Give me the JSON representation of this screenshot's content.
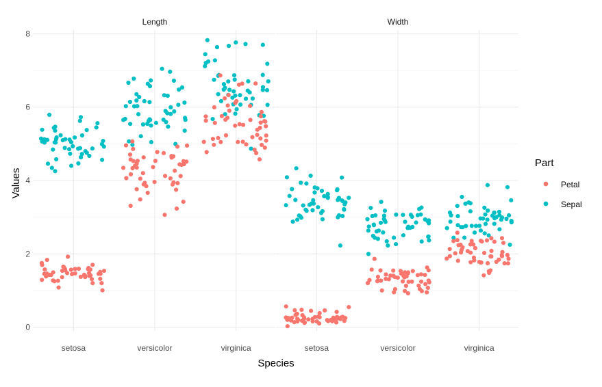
{
  "chart_data": {
    "type": "scatter",
    "jitter": true,
    "facets": [
      "Length",
      "Width"
    ],
    "categories": [
      "setosa",
      "versicolor",
      "virginica"
    ],
    "xlabel": "Species",
    "ylabel": "Values",
    "ylim": [
      -0.1,
      8.1
    ],
    "yticks": [
      0,
      2,
      4,
      6,
      8
    ],
    "yticks_labels": [
      "0",
      "2",
      "4",
      "6",
      "8"
    ],
    "grid": true,
    "legend": {
      "title": "Part",
      "position": "right",
      "entries": [
        {
          "name": "Petal",
          "color": "#F8766D"
        },
        {
          "name": "Sepal",
          "color": "#00BFC4"
        }
      ]
    },
    "series": [
      {
        "name": "Sepal",
        "facet": "Length",
        "color": "#00BFC4",
        "groups": {
          "setosa": [
            5.1,
            4.9,
            4.7,
            4.6,
            5.0,
            5.4,
            4.6,
            5.0,
            4.4,
            4.9,
            5.4,
            4.8,
            4.8,
            4.3,
            5.8,
            5.7,
            5.4,
            5.1,
            5.7,
            5.1,
            5.4,
            5.1,
            4.6,
            5.1,
            4.8,
            5.0,
            5.0,
            5.2,
            5.2,
            4.7,
            4.8,
            5.4,
            5.2,
            5.5,
            4.9,
            5.0,
            5.5,
            4.9,
            4.4,
            5.1,
            5.0,
            4.5,
            4.4,
            5.0,
            5.1,
            4.8,
            5.1,
            4.6,
            5.3,
            5.0
          ],
          "versicolor": [
            7.0,
            6.4,
            6.9,
            5.5,
            6.5,
            5.7,
            6.3,
            4.9,
            6.6,
            5.2,
            5.0,
            5.9,
            6.0,
            6.1,
            5.6,
            6.7,
            5.6,
            5.8,
            6.2,
            5.6,
            5.9,
            6.1,
            6.3,
            6.1,
            6.4,
            6.6,
            6.8,
            6.7,
            6.0,
            5.7,
            5.5,
            5.5,
            5.8,
            6.0,
            5.4,
            6.0,
            6.7,
            6.3,
            5.6,
            5.5,
            5.5,
            6.1,
            5.8,
            5.0,
            5.6,
            5.7,
            5.7,
            6.2,
            5.1,
            5.7
          ],
          "virginica": [
            6.3,
            5.8,
            7.1,
            6.3,
            6.5,
            7.6,
            4.9,
            7.3,
            6.7,
            7.2,
            6.5,
            6.4,
            6.8,
            5.7,
            5.8,
            6.4,
            6.5,
            7.7,
            7.7,
            6.0,
            6.9,
            5.6,
            7.7,
            6.3,
            6.7,
            7.2,
            6.2,
            6.1,
            6.4,
            7.2,
            7.4,
            7.9,
            6.4,
            6.3,
            6.1,
            7.7,
            6.3,
            6.4,
            6.0,
            6.9,
            6.7,
            6.9,
            5.8,
            6.8,
            6.7,
            6.7,
            6.3,
            6.5,
            6.2,
            5.9
          ]
        }
      },
      {
        "name": "Petal",
        "facet": "Length",
        "color": "#F8766D",
        "groups": {
          "setosa": [
            1.4,
            1.4,
            1.3,
            1.5,
            1.4,
            1.7,
            1.4,
            1.5,
            1.4,
            1.5,
            1.5,
            1.6,
            1.4,
            1.1,
            1.2,
            1.5,
            1.3,
            1.4,
            1.7,
            1.5,
            1.7,
            1.5,
            1.0,
            1.7,
            1.9,
            1.6,
            1.6,
            1.5,
            1.4,
            1.6,
            1.6,
            1.5,
            1.5,
            1.4,
            1.5,
            1.2,
            1.3,
            1.4,
            1.3,
            1.5,
            1.3,
            1.3,
            1.3,
            1.6,
            1.9,
            1.4,
            1.6,
            1.4,
            1.5,
            1.4
          ],
          "versicolor": [
            4.7,
            4.5,
            4.9,
            4.0,
            4.6,
            4.5,
            4.7,
            3.3,
            4.6,
            3.9,
            3.5,
            4.2,
            4.0,
            4.7,
            3.6,
            4.4,
            4.5,
            4.1,
            4.5,
            3.9,
            4.8,
            4.0,
            4.9,
            4.7,
            4.3,
            4.4,
            4.8,
            5.0,
            4.5,
            3.5,
            3.8,
            3.7,
            3.9,
            5.1,
            4.5,
            4.5,
            4.7,
            4.4,
            4.1,
            4.0,
            4.4,
            4.6,
            4.0,
            3.3,
            4.2,
            4.2,
            4.2,
            4.3,
            3.0,
            4.1
          ],
          "virginica": [
            6.0,
            5.1,
            5.9,
            5.6,
            5.8,
            6.6,
            4.5,
            6.3,
            5.8,
            6.1,
            5.1,
            5.3,
            5.5,
            5.0,
            5.1,
            5.3,
            5.5,
            6.7,
            6.9,
            5.0,
            5.7,
            4.9,
            6.7,
            4.9,
            5.7,
            6.0,
            4.8,
            4.9,
            5.6,
            5.8,
            6.1,
            6.4,
            5.6,
            5.1,
            5.6,
            6.1,
            5.6,
            5.5,
            4.8,
            5.4,
            5.6,
            5.1,
            5.1,
            5.9,
            5.7,
            5.2,
            5.0,
            5.2,
            5.4,
            5.1
          ]
        }
      },
      {
        "name": "Sepal",
        "facet": "Width",
        "color": "#00BFC4",
        "groups": {
          "setosa": [
            3.5,
            3.0,
            3.2,
            3.1,
            3.6,
            3.9,
            3.4,
            3.4,
            2.9,
            3.1,
            3.7,
            3.4,
            3.0,
            3.0,
            4.0,
            4.4,
            3.9,
            3.5,
            3.8,
            3.8,
            3.4,
            3.7,
            3.6,
            3.3,
            3.4,
            3.0,
            3.4,
            3.5,
            3.4,
            3.2,
            3.1,
            3.4,
            4.1,
            4.2,
            3.1,
            3.2,
            3.5,
            3.6,
            3.0,
            3.4,
            3.5,
            2.3,
            3.2,
            3.5,
            3.8,
            3.0,
            3.8,
            3.2,
            3.7,
            3.3
          ],
          "versicolor": [
            3.2,
            3.2,
            3.1,
            2.3,
            2.8,
            2.8,
            3.3,
            2.4,
            2.9,
            2.7,
            2.0,
            3.0,
            2.2,
            2.9,
            2.9,
            3.1,
            3.0,
            2.7,
            2.2,
            2.5,
            3.2,
            2.8,
            2.5,
            2.8,
            2.9,
            3.0,
            2.8,
            3.0,
            2.9,
            2.6,
            2.4,
            2.4,
            2.7,
            2.7,
            3.0,
            3.4,
            3.1,
            2.3,
            3.0,
            2.5,
            2.6,
            3.0,
            2.6,
            2.3,
            2.7,
            3.0,
            2.9,
            2.9,
            2.5,
            2.8
          ],
          "virginica": [
            3.3,
            2.7,
            3.0,
            2.9,
            3.0,
            3.0,
            2.5,
            2.9,
            2.5,
            3.6,
            3.2,
            2.7,
            3.0,
            2.5,
            2.8,
            3.2,
            3.0,
            3.8,
            2.6,
            2.2,
            3.2,
            2.8,
            2.8,
            2.7,
            3.3,
            3.2,
            2.8,
            3.0,
            2.8,
            3.0,
            2.8,
            3.8,
            2.8,
            2.8,
            2.6,
            3.0,
            3.4,
            3.1,
            3.0,
            3.1,
            3.1,
            3.1,
            2.7,
            3.2,
            3.3,
            3.0,
            2.5,
            3.0,
            3.4,
            3.0
          ]
        }
      },
      {
        "name": "Petal",
        "facet": "Width",
        "color": "#F8766D",
        "groups": {
          "setosa": [
            0.2,
            0.2,
            0.2,
            0.2,
            0.2,
            0.4,
            0.3,
            0.2,
            0.2,
            0.1,
            0.2,
            0.2,
            0.1,
            0.1,
            0.2,
            0.4,
            0.4,
            0.3,
            0.3,
            0.3,
            0.2,
            0.4,
            0.2,
            0.5,
            0.2,
            0.2,
            0.4,
            0.2,
            0.2,
            0.2,
            0.2,
            0.4,
            0.1,
            0.2,
            0.2,
            0.2,
            0.2,
            0.1,
            0.2,
            0.2,
            0.3,
            0.3,
            0.2,
            0.6,
            0.4,
            0.3,
            0.2,
            0.2,
            0.2,
            0.2
          ],
          "versicolor": [
            1.4,
            1.5,
            1.5,
            1.3,
            1.5,
            1.3,
            1.6,
            1.0,
            1.3,
            1.4,
            1.0,
            1.5,
            1.0,
            1.4,
            1.3,
            1.4,
            1.5,
            1.0,
            1.5,
            1.1,
            1.8,
            1.3,
            1.5,
            1.2,
            1.3,
            1.4,
            1.4,
            1.7,
            1.5,
            1.0,
            1.1,
            1.0,
            1.2,
            1.6,
            1.5,
            1.6,
            1.5,
            1.3,
            1.3,
            1.3,
            1.2,
            1.4,
            1.2,
            1.0,
            1.3,
            1.2,
            1.3,
            1.3,
            1.1,
            1.3
          ],
          "virginica": [
            2.5,
            1.9,
            2.1,
            1.8,
            2.2,
            2.1,
            1.7,
            1.8,
            1.8,
            2.5,
            2.0,
            1.9,
            2.1,
            2.0,
            2.4,
            2.3,
            1.8,
            2.2,
            2.3,
            1.5,
            2.3,
            2.0,
            2.0,
            1.8,
            2.1,
            1.8,
            1.8,
            1.8,
            2.1,
            1.6,
            1.9,
            2.0,
            2.2,
            1.5,
            1.4,
            2.3,
            2.4,
            1.8,
            1.8,
            2.1,
            2.4,
            2.3,
            1.9,
            2.3,
            2.5,
            2.3,
            1.9,
            2.0,
            2.3,
            1.8
          ]
        }
      }
    ]
  }
}
